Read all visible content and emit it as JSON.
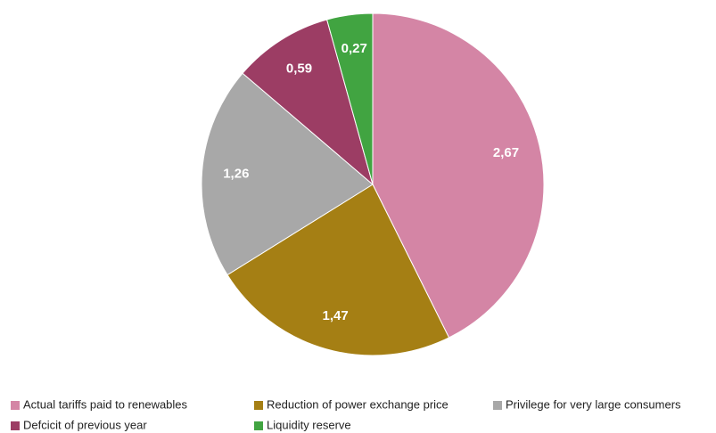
{
  "chart_data": {
    "type": "pie",
    "categories": [
      "Actual tariffs paid to renewables",
      "Reduction of power exchange price",
      "Privilege for very large consumers",
      "Defcicit of previous year",
      "Liquidity reserve"
    ],
    "values": [
      2.67,
      1.47,
      1.26,
      0.59,
      0.27
    ],
    "value_labels": [
      "2,67",
      "1,47",
      "1,26",
      "0,59",
      "0,27"
    ],
    "colors": [
      "#d485a5",
      "#a57f14",
      "#a8a8a8",
      "#9c3d64",
      "#41a441"
    ],
    "legend": "bottom"
  }
}
